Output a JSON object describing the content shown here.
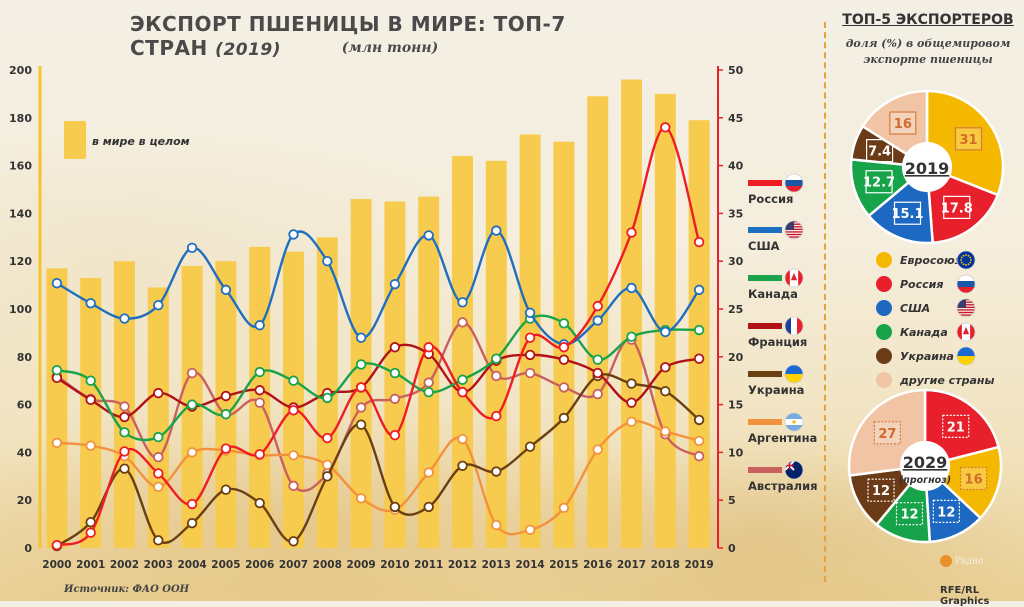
{
  "header": {
    "title": "ЭКСПОРТ ПШЕНИЦЫ В МИРЕ: ТОП-7 СТРАН",
    "title_year": "(2019)",
    "subtitle": "(млн тонн)"
  },
  "source": "Источник: ФАО ООН",
  "credit": "RFE/RL Graphics",
  "logo_text": "Радио",
  "chart_data": [
    {
      "type": "bar",
      "x": [
        "2000",
        "2001",
        "2002",
        "2003",
        "2004",
        "2005",
        "2006",
        "2007",
        "2008",
        "2009",
        "2010",
        "2011",
        "2012",
        "2013",
        "2014",
        "2015",
        "2016",
        "2017",
        "2018",
        "2019"
      ],
      "ylim_left": [
        0,
        200
      ],
      "left_ticks": [
        0,
        20,
        40,
        60,
        80,
        100,
        120,
        140,
        160,
        180,
        200
      ],
      "ylim_right": [
        0,
        50
      ],
      "right_ticks": [
        0,
        5,
        10,
        15,
        20,
        25,
        30,
        35,
        40,
        45,
        50
      ],
      "bar_series": {
        "name": "в мире в целом",
        "color": "#f7cb4d",
        "axis": "left",
        "values": [
          117,
          113,
          120,
          109,
          118,
          120,
          126,
          124,
          130,
          146,
          145,
          147,
          164,
          162,
          173,
          170,
          189,
          196,
          190,
          179
        ]
      },
      "series": [
        {
          "name": "Россия",
          "color": "#ee1d23",
          "flag": "ru",
          "values": [
            0.3,
            1.6,
            10.1,
            7.8,
            4.6,
            10.4,
            9.8,
            14.4,
            11.5,
            16.8,
            11.8,
            21.0,
            16.3,
            13.8,
            22.0,
            21.0,
            25.3,
            33.0,
            44.0,
            32.0
          ]
        },
        {
          "name": "США",
          "color": "#1f6fc0",
          "flag": "us",
          "values": [
            27.7,
            25.6,
            24.0,
            25.4,
            31.4,
            27.0,
            23.3,
            32.8,
            30.0,
            22.0,
            27.6,
            32.7,
            25.7,
            33.2,
            24.6,
            21.3,
            23.8,
            27.2,
            22.6,
            27.0
          ]
        },
        {
          "name": "Канада",
          "color": "#1aa34a",
          "flag": "ca",
          "values": [
            18.6,
            17.5,
            12.1,
            11.6,
            15.0,
            14.0,
            18.4,
            17.5,
            15.7,
            19.2,
            18.3,
            16.3,
            17.6,
            19.8,
            24.0,
            23.5,
            19.7,
            22.1,
            22.8,
            22.8
          ]
        },
        {
          "name": "Франция",
          "color": "#b01218",
          "flag": "fr",
          "values": [
            17.8,
            15.5,
            13.7,
            16.2,
            14.8,
            15.9,
            16.5,
            14.7,
            16.2,
            16.8,
            21.0,
            20.3,
            16.3,
            19.6,
            20.2,
            19.7,
            18.3,
            15.2,
            18.9,
            19.8
          ]
        },
        {
          "name": "Украина",
          "color": "#6a3f12",
          "flag": "ua",
          "values": [
            0.2,
            2.7,
            8.3,
            0.8,
            2.6,
            6.1,
            4.7,
            0.7,
            7.5,
            12.9,
            4.3,
            4.3,
            8.6,
            8.0,
            10.6,
            13.6,
            18.0,
            17.2,
            16.4,
            13.4
          ]
        },
        {
          "name": "Аргентина",
          "color": "#f3923d",
          "flag": "ar",
          "values": [
            11.0,
            10.7,
            9.6,
            6.4,
            10.0,
            10.2,
            9.7,
            9.7,
            8.7,
            5.2,
            4.0,
            7.9,
            11.4,
            2.4,
            1.9,
            4.2,
            10.3,
            13.2,
            12.2,
            11.2
          ]
        },
        {
          "name": "Австралия",
          "color": "#c8605f",
          "flag": "au",
          "values": [
            18.0,
            15.6,
            14.8,
            9.5,
            18.3,
            14.0,
            15.2,
            6.5,
            7.8,
            14.7,
            15.6,
            17.3,
            23.6,
            18.0,
            18.3,
            16.8,
            16.1,
            21.8,
            11.9,
            9.6
          ]
        }
      ],
      "grid": false,
      "legend": "right"
    },
    {
      "type": "pie",
      "title": "ТОП-5 ЭКСПОРТЕРОВ",
      "subtitle": "доля (%) в общемировом экспорте пшеницы",
      "center_label": "2019",
      "slices": [
        {
          "label": "Евросоюз",
          "value": 31,
          "color": "#f5b800"
        },
        {
          "label": "Россия",
          "value": 17.8,
          "color": "#e8202b"
        },
        {
          "label": "США",
          "value": 15.1,
          "color": "#1d68c1"
        },
        {
          "label": "Канада",
          "value": 12.7,
          "color": "#16a34a"
        },
        {
          "label": "Украина",
          "value": 7.4,
          "color": "#6b3a16"
        },
        {
          "label": "другие страны",
          "value": 16,
          "color": "#f1c4a6"
        }
      ]
    },
    {
      "type": "pie",
      "center_label": "2029",
      "center_sublabel": "(прогноз)",
      "slices": [
        {
          "label": "Россия",
          "value": 21,
          "color": "#e8202b"
        },
        {
          "label": "Евросоюз",
          "value": 16,
          "color": "#f5b800"
        },
        {
          "label": "США",
          "value": 12,
          "color": "#1d68c1"
        },
        {
          "label": "Канада",
          "value": 12,
          "color": "#16a34a"
        },
        {
          "label": "Украина",
          "value": 12,
          "color": "#6b3a16"
        },
        {
          "label": "другие страны",
          "value": 27,
          "color": "#f1c4a6"
        }
      ]
    }
  ],
  "pie_legend": [
    {
      "label": "Евросоюз",
      "color": "#f5b800",
      "flag": "eu"
    },
    {
      "label": "Россия",
      "color": "#e8202b",
      "flag": "ru"
    },
    {
      "label": "США",
      "color": "#1d68c1",
      "flag": "us"
    },
    {
      "label": "Канада",
      "color": "#16a34a",
      "flag": "ca"
    },
    {
      "label": "Украина",
      "color": "#6b3a16",
      "flag": "ua"
    },
    {
      "label": "другие страны",
      "color": "#f1c4a6",
      "flag": ""
    }
  ]
}
